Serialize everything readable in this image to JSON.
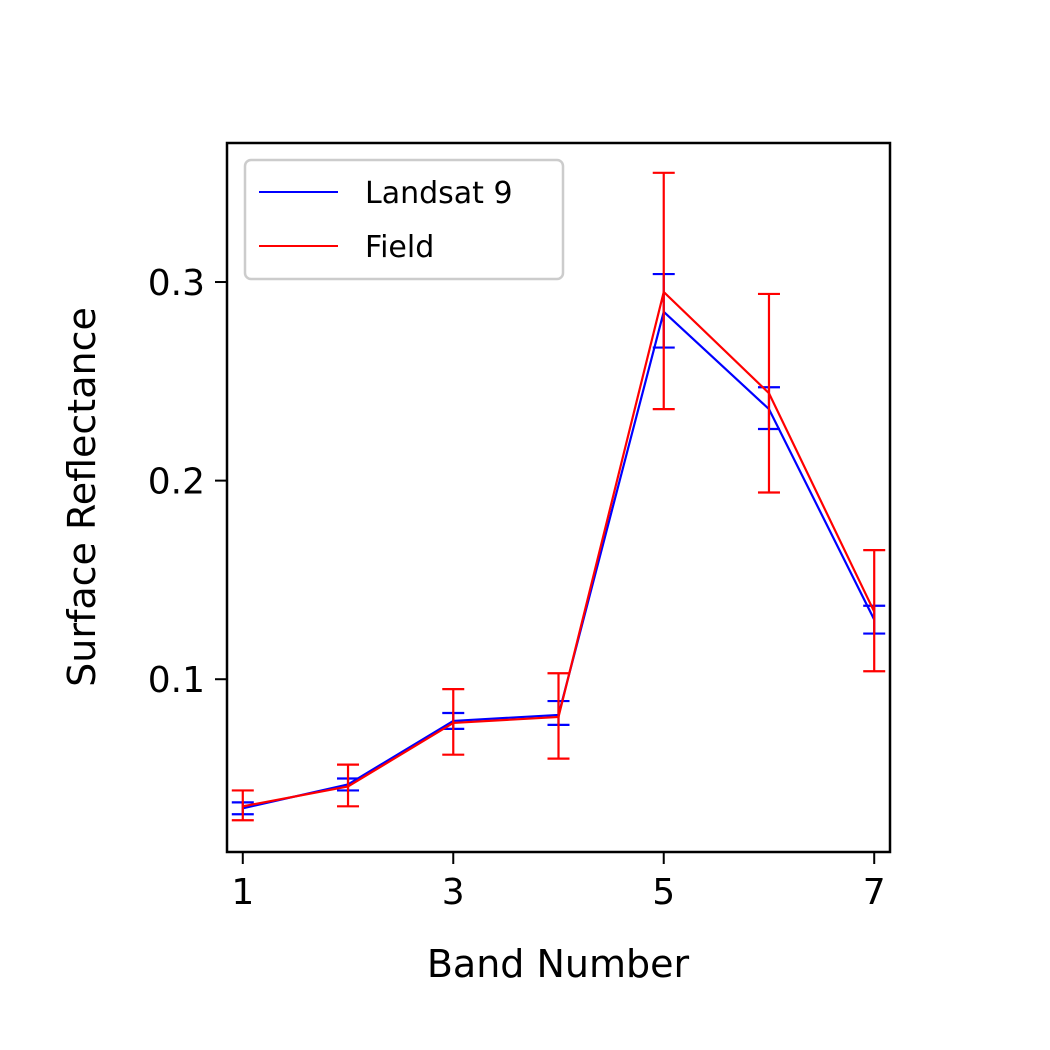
{
  "chart_data": {
    "type": "line",
    "title": "",
    "xlabel": "Band Number",
    "ylabel": "Surface Reflectance",
    "x": [
      1,
      2,
      3,
      4,
      5,
      6,
      7
    ],
    "xticks": [
      1,
      3,
      5,
      7
    ],
    "xtick_labels": [
      "1",
      "3",
      "5",
      "7"
    ],
    "xlim": [
      0.85,
      7.15
    ],
    "yticks": [
      0.1,
      0.2,
      0.3
    ],
    "ytick_labels": [
      "0.1",
      "0.2",
      "0.3"
    ],
    "ylim": [
      0.013,
      0.37
    ],
    "grid": false,
    "legend": {
      "position": "top-left"
    },
    "series": [
      {
        "name": "Landsat 9",
        "color": "#0000ff",
        "values": [
          0.035,
          0.047,
          0.079,
          0.082,
          0.285,
          0.236,
          0.13
        ],
        "err_low": [
          0.032,
          0.044,
          0.075,
          0.077,
          0.267,
          0.226,
          0.123
        ],
        "err_high": [
          0.038,
          0.05,
          0.083,
          0.089,
          0.304,
          0.247,
          0.137
        ]
      },
      {
        "name": "Field",
        "color": "#ff0000",
        "values": [
          0.036,
          0.046,
          0.078,
          0.081,
          0.295,
          0.244,
          0.134
        ],
        "err_low": [
          0.029,
          0.036,
          0.062,
          0.06,
          0.236,
          0.194,
          0.104
        ],
        "err_high": [
          0.044,
          0.057,
          0.095,
          0.103,
          0.355,
          0.294,
          0.165
        ]
      }
    ]
  }
}
